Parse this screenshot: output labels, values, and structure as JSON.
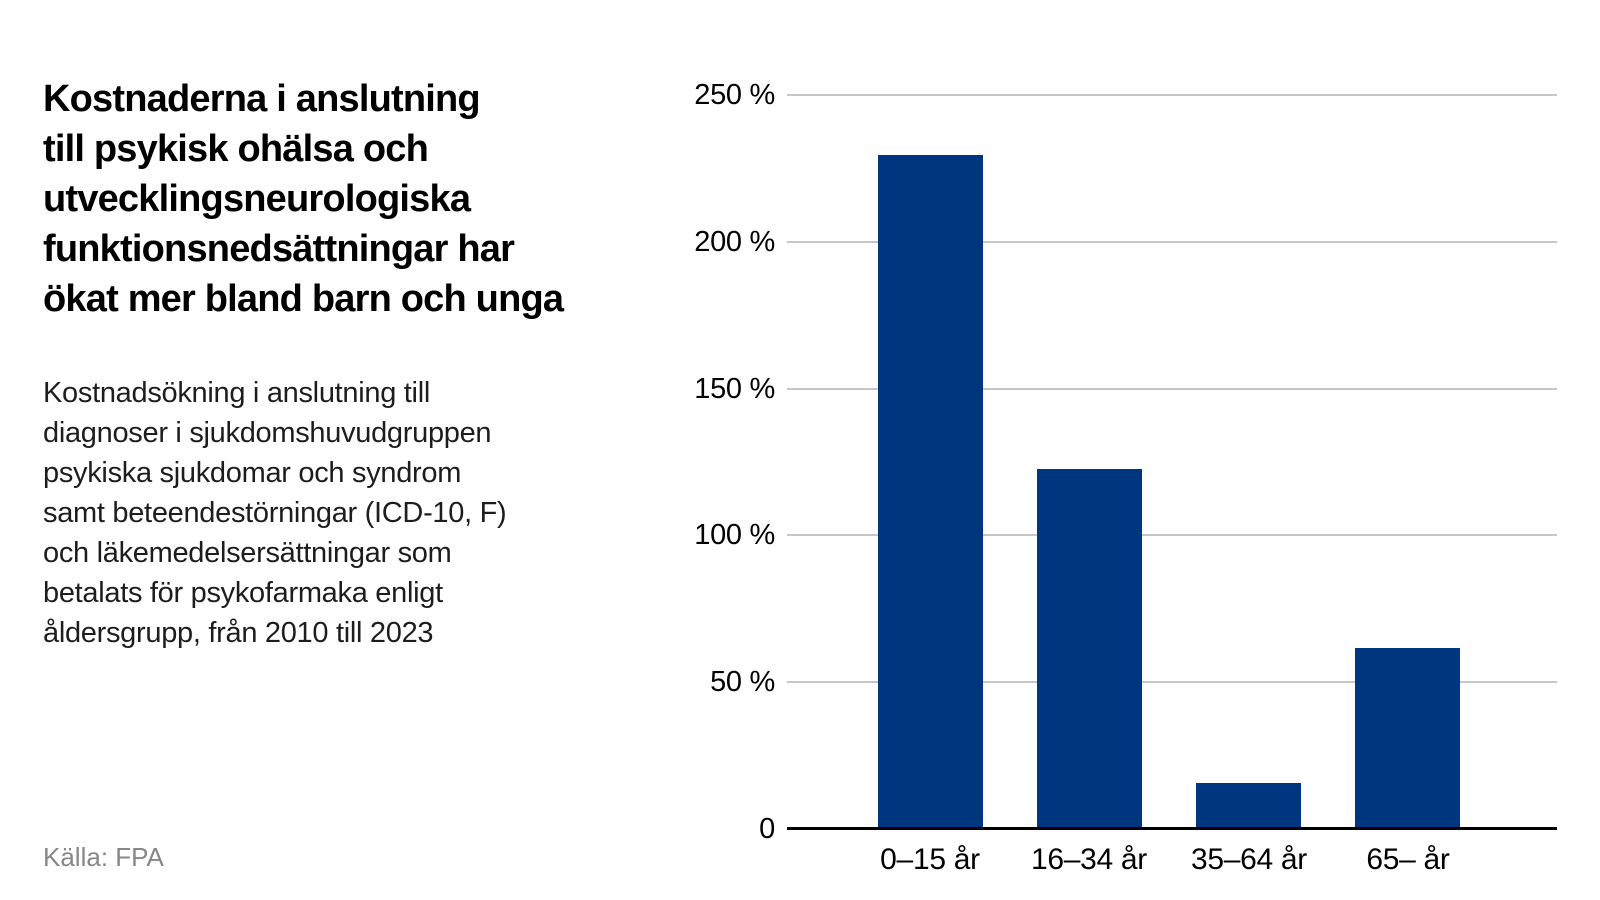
{
  "header": {
    "title": "Kostnaderna i anslutning\ntill psykisk ohälsa och\nutvecklingsneurologiska\nfunktionsnedsättningar har\nökat mer bland barn och unga",
    "subtitle": "Kostnadsökning i anslutning till\ndiagnoser i sjukdomshuvudgruppen\npsykiska sjukdomar och syndrom\nsamt beteendestörningar (ICD-10, F)\noch läkemedelsersättningar som\nbetalats för psykofarmaka enligt\nåldersgrupp, från 2010 till 2023"
  },
  "source": {
    "text": "Källa: FPA"
  },
  "colors": {
    "bar": "#003580",
    "grid": "#c6c6c6",
    "axis": "#000000",
    "tick_text": "#000000",
    "source_text": "#878787",
    "background": "#ffffff"
  },
  "chart_data": {
    "type": "bar",
    "categories": [
      "0–15 år",
      "16–34 år",
      "35–64 år",
      "65– år"
    ],
    "values": [
      229,
      122,
      15,
      61
    ],
    "value_unit": "%",
    "title": "",
    "xlabel": "",
    "ylabel": "",
    "ylim": [
      0,
      250
    ],
    "yticks": [
      {
        "value": 250,
        "label": "250 %"
      },
      {
        "value": 200,
        "label": "200 %"
      },
      {
        "value": 150,
        "label": "150 %"
      },
      {
        "value": 100,
        "label": "100 %"
      },
      {
        "value": 50,
        "label": "50 %"
      },
      {
        "value": 0,
        "label": "0"
      }
    ],
    "grid": true,
    "legend": false
  }
}
